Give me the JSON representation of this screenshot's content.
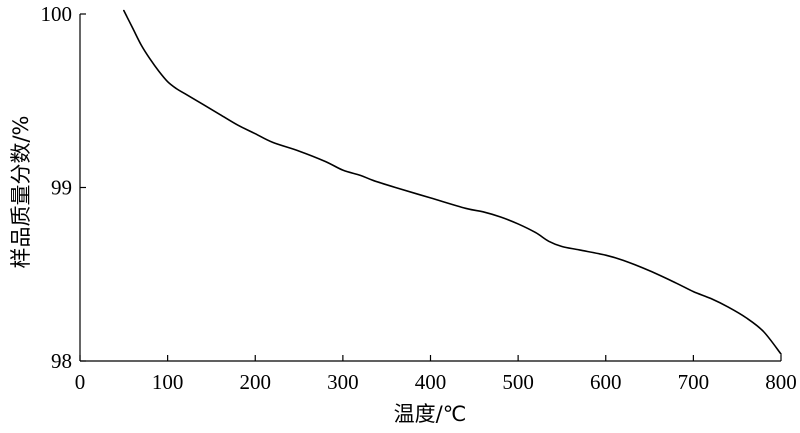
{
  "chart_data": {
    "type": "line",
    "xlabel": "温度/℃",
    "ylabel": "样品质量分数/%",
    "xlim": [
      0,
      800
    ],
    "ylim": [
      98,
      100
    ],
    "xticks": [
      0,
      100,
      200,
      300,
      400,
      500,
      600,
      700,
      800
    ],
    "yticks": [
      98,
      99,
      100
    ],
    "grid": false,
    "series": [
      {
        "color": "#000000",
        "x": [
          50,
          60,
          70,
          80,
          90,
          100,
          110,
          120,
          140,
          160,
          180,
          200,
          220,
          250,
          280,
          300,
          320,
          335,
          360,
          400,
          440,
          460,
          480,
          500,
          520,
          535,
          550,
          570,
          600,
          620,
          650,
          680,
          700,
          720,
          740,
          760,
          780,
          800
        ],
        "y": [
          100.02,
          99.92,
          99.82,
          99.74,
          99.67,
          99.61,
          99.57,
          99.54,
          99.48,
          99.42,
          99.36,
          99.31,
          99.26,
          99.21,
          99.15,
          99.1,
          99.07,
          99.04,
          99.0,
          98.94,
          98.88,
          98.86,
          98.83,
          98.79,
          98.74,
          98.69,
          98.66,
          98.64,
          98.61,
          98.58,
          98.52,
          98.45,
          98.4,
          98.36,
          98.31,
          98.25,
          98.17,
          98.04
        ]
      }
    ]
  }
}
